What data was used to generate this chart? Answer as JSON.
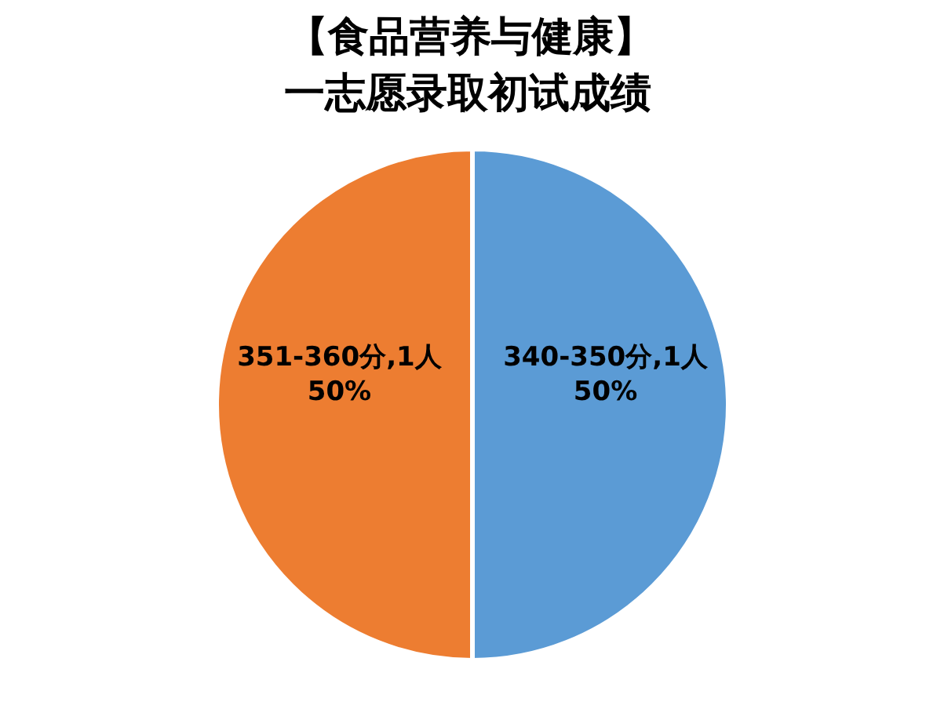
{
  "chart_data": {
    "type": "pie",
    "title": "【食品营养与健康】",
    "subtitle": "一志愿录取初试成绩",
    "categories": [
      "340-350分",
      "351-360分"
    ],
    "values": [
      1,
      1
    ],
    "colors": [
      "#5b9bd5",
      "#ed7d31"
    ],
    "value_labels": [
      "1人\n50%",
      "1人\n50%"
    ]
  }
}
